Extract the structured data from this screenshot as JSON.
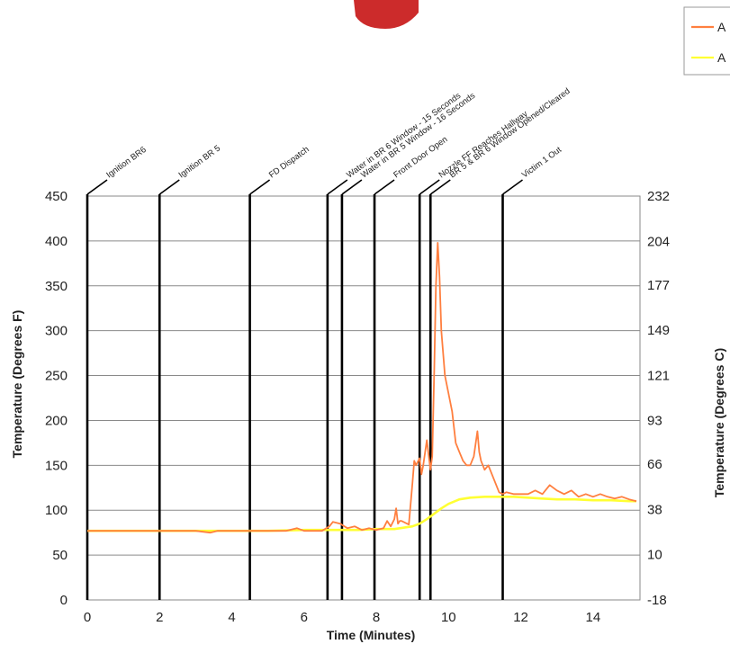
{
  "chart_data": {
    "type": "line",
    "title": "",
    "xlabel": "Time (Minutes)",
    "ylabel": "Temperature (Degrees F)",
    "y2label": "Temperature (Degrees C)",
    "xlim": [
      0,
      15.3
    ],
    "ylim": [
      0,
      450
    ],
    "y2lim": [
      -18,
      232
    ],
    "xticks": [
      0,
      2,
      4,
      6,
      8,
      10,
      12,
      14
    ],
    "yticks": [
      0,
      50,
      100,
      150,
      200,
      250,
      300,
      350,
      400,
      450
    ],
    "y2ticks": [
      -18,
      10,
      38,
      66,
      93,
      121,
      149,
      177,
      204,
      232
    ],
    "grid": "horizontal",
    "legend_position": "top-right (clipped)",
    "legend": [
      {
        "label": "A",
        "color": "#ff7f3f"
      },
      {
        "label": "A",
        "color": "#ffff33"
      }
    ],
    "events": [
      {
        "time": 0.0,
        "label": "Ignition BR6"
      },
      {
        "time": 2.0,
        "label": "Ignition BR 5"
      },
      {
        "time": 4.5,
        "label": "FD Dispatch"
      },
      {
        "time": 6.65,
        "label": "Water in BR 6 Window - 15 Seconds"
      },
      {
        "time": 7.05,
        "label": "Water in BR 5 Window - 16 Seconds"
      },
      {
        "time": 7.95,
        "label": "Front Door Open"
      },
      {
        "time": 9.2,
        "label": "Nozzle FF Reaches Hallway"
      },
      {
        "time": 9.5,
        "label": "BR 5 & BR 6 Window Opened/Cleared"
      },
      {
        "time": 11.5,
        "label": "Victim 1 Out"
      }
    ],
    "series": [
      {
        "color": "#ff7f3f",
        "x": [
          0,
          1,
          2,
          3,
          3.4,
          3.6,
          4,
          5,
          5.5,
          5.8,
          6,
          6.5,
          6.7,
          6.8,
          7,
          7.2,
          7.4,
          7.6,
          7.8,
          8,
          8.2,
          8.3,
          8.4,
          8.5,
          8.55,
          8.6,
          8.65,
          8.7,
          8.9,
          9.0,
          9.05,
          9.1,
          9.2,
          9.25,
          9.3,
          9.4,
          9.5,
          9.55,
          9.6,
          9.65,
          9.7,
          9.75,
          9.8,
          9.85,
          9.9,
          10.0,
          10.1,
          10.2,
          10.3,
          10.4,
          10.5,
          10.6,
          10.7,
          10.8,
          10.85,
          10.9,
          11.0,
          11.1,
          11.2,
          11.3,
          11.4,
          11.5,
          11.6,
          11.8,
          12.0,
          12.2,
          12.4,
          12.6,
          12.8,
          13.0,
          13.2,
          13.4,
          13.6,
          13.8,
          14.0,
          14.2,
          14.4,
          14.6,
          14.8,
          15.0,
          15.2
        ],
        "values": [
          77,
          77,
          77,
          77,
          75,
          77,
          77,
          77,
          77,
          80,
          77,
          77,
          82,
          87,
          85,
          80,
          82,
          78,
          80,
          78,
          80,
          88,
          82,
          90,
          102,
          85,
          88,
          88,
          84,
          130,
          155,
          150,
          158,
          140,
          150,
          178,
          145,
          160,
          250,
          350,
          398,
          360,
          300,
          275,
          250,
          230,
          210,
          175,
          165,
          155,
          150,
          150,
          160,
          188,
          165,
          155,
          145,
          150,
          140,
          130,
          120,
          118,
          120,
          118,
          118,
          118,
          122,
          118,
          128,
          122,
          118,
          122,
          115,
          118,
          115,
          118,
          115,
          113,
          115,
          112,
          110
        ]
      },
      {
        "color": "#ffff33",
        "x": [
          0,
          1,
          2,
          3,
          4,
          5,
          6,
          6.5,
          7,
          7.5,
          8,
          8.5,
          9,
          9.2,
          9.4,
          9.6,
          9.8,
          10.0,
          10.3,
          10.6,
          11.0,
          11.4,
          11.8,
          12.2,
          12.6,
          13.0,
          13.5,
          14.0,
          14.5,
          15.0,
          15.2
        ],
        "values": [
          77,
          77,
          77,
          77,
          77,
          77,
          78,
          78,
          78,
          78,
          79,
          79,
          82,
          85,
          90,
          96,
          102,
          107,
          112,
          114,
          115,
          115,
          115,
          114,
          113,
          112,
          112,
          111,
          111,
          110,
          110
        ]
      }
    ]
  }
}
